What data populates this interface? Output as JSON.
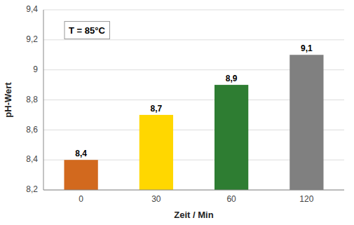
{
  "chart_data": {
    "type": "bar",
    "categories": [
      "0",
      "30",
      "60",
      "120"
    ],
    "values": [
      8.4,
      8.7,
      8.9,
      9.1
    ],
    "value_labels": [
      "8,4",
      "8,7",
      "8,9",
      "9,1"
    ],
    "data_labels": true,
    "colors": [
      "#D2691E",
      "#FFD700",
      "#2E7D32",
      "#808080"
    ],
    "xlabel": "Zeit / Min",
    "ylabel": "pH-Wert",
    "annotation": "T = 85°C",
    "ylim": [
      8.2,
      9.4
    ],
    "yticks": [
      {
        "value": 8.2,
        "label": "8,2"
      },
      {
        "value": 8.4,
        "label": "8,4"
      },
      {
        "value": 8.6,
        "label": "8,6"
      },
      {
        "value": 8.8,
        "label": "8,8"
      },
      9,
      {
        "value": 9.2,
        "label": "9,2"
      },
      {
        "value": 9.4,
        "label": "9,4"
      }
    ],
    "grid": true
  }
}
